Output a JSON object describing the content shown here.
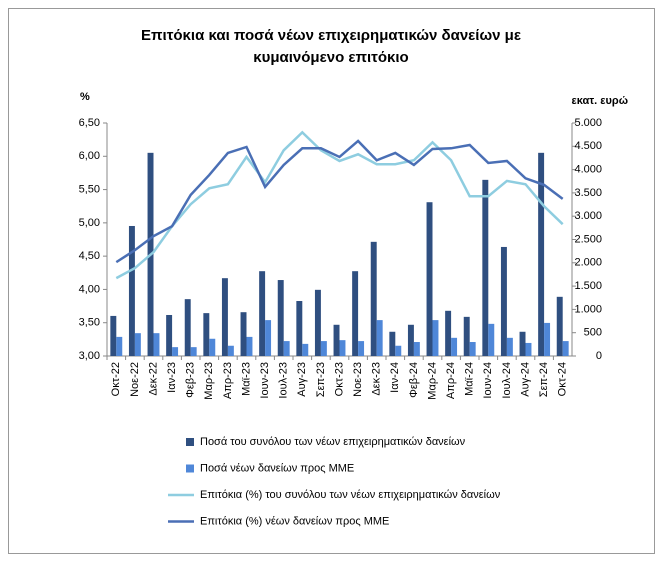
{
  "chart_data": {
    "type": "combo",
    "title": [
      "Επιτόκια και ποσά νέων επιχειρηματικών δανείων με",
      "κυμαινόμενο επιτόκιο"
    ],
    "y_label": "%",
    "y2_label": "εκατ. ευρώ",
    "categories": [
      "Οκτ-22",
      "Νοε-22",
      "Δεκ-22",
      "Ιαν-23",
      "Φεβ-23",
      "Μαρ-23",
      "Απρ-23",
      "Μαϊ-23",
      "Ιουν-23",
      "Ιουλ-23",
      "Αυγ-23",
      "Σεπ-23",
      "Οκτ-23",
      "Νοε-23",
      "Δεκ-23",
      "Ιαν-24",
      "Φεβ-24",
      "Μαρ-24",
      "Απρ-24",
      "Μαϊ-24",
      "Ιουν-24",
      "Ιουλ-24",
      "Αυγ-24",
      "Σεπ-24",
      "Οκτ-24"
    ],
    "ylim": [
      3,
      6.5
    ],
    "yticks": [
      {
        "value": 3,
        "label": "3,00"
      },
      {
        "value": 3.5,
        "label": "3,50"
      },
      {
        "value": 4,
        "label": "4,00"
      },
      {
        "value": 4.5,
        "label": "4,50"
      },
      {
        "value": 5,
        "label": "5,00"
      },
      {
        "value": 5.5,
        "label": "5,50"
      },
      {
        "value": 6,
        "label": "6,00"
      },
      {
        "value": 6.5,
        "label": "6,50"
      }
    ],
    "y2lim": [
      0,
      5000
    ],
    "y2ticks": [
      0,
      500,
      {
        "value": 1000,
        "label": "1.000"
      },
      {
        "value": 1500,
        "label": "1.500"
      },
      {
        "value": 2000,
        "label": "2.000"
      },
      {
        "value": 2500,
        "label": "2.500"
      },
      {
        "value": 3000,
        "label": "3.000"
      },
      {
        "value": 3500,
        "label": "3.500"
      },
      {
        "value": 4000,
        "label": "4.000"
      },
      {
        "value": 4500,
        "label": "4.500"
      },
      {
        "value": 5000,
        "label": "5.000"
      }
    ],
    "series": [
      {
        "name": "Ποσά του συνόλου των νέων επιχειρηματικών δανείων",
        "type": "bar",
        "axis": "y2",
        "color": "#2f4f80",
        "values": [
          860,
          2790,
          4360,
          880,
          1220,
          920,
          1670,
          940,
          1820,
          1630,
          1180,
          1420,
          670,
          1820,
          2450,
          520,
          670,
          3300,
          970,
          840,
          3780,
          2340,
          520,
          4360,
          1270
        ]
      },
      {
        "name": "Ποσά νέων δανείων προς ΜΜΕ",
        "type": "bar",
        "axis": "y2",
        "color": "#4f87d8",
        "values": [
          410,
          490,
          490,
          190,
          190,
          370,
          220,
          410,
          770,
          320,
          260,
          320,
          340,
          320,
          770,
          220,
          300,
          770,
          390,
          300,
          690,
          390,
          280,
          710,
          320
        ]
      },
      {
        "name": "Επιτόκια (%) του συνόλου των νέων επιχειρηματικών δανείων",
        "type": "line",
        "color": "#8ecde0",
        "values": [
          4.17,
          4.32,
          4.56,
          4.95,
          5.28,
          5.52,
          5.58,
          5.99,
          5.61,
          6.09,
          6.36,
          6.09,
          5.93,
          6.03,
          5.88,
          5.88,
          5.94,
          6.21,
          5.94,
          5.4,
          5.4,
          5.63,
          5.58,
          5.25,
          4.98
        ]
      },
      {
        "name": "Επιτόκια (%) νέων δανείων προς ΜΜΕ",
        "type": "line",
        "color": "#4a6fb5",
        "values": [
          4.41,
          4.59,
          4.8,
          4.95,
          5.42,
          5.72,
          6.05,
          6.14,
          5.54,
          5.87,
          6.12,
          6.12,
          5.99,
          6.23,
          5.94,
          6.05,
          5.87,
          6.11,
          6.12,
          6.17,
          5.9,
          5.93,
          5.67,
          5.57,
          5.36
        ]
      }
    ]
  }
}
